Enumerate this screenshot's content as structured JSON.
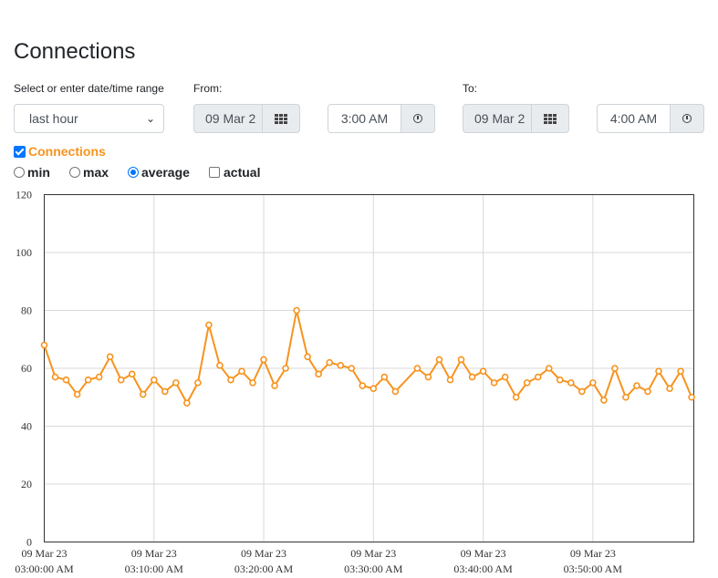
{
  "page": {
    "title": "Connections"
  },
  "range": {
    "label": "Select or enter date/time range",
    "value": "last hour"
  },
  "from": {
    "label": "From:",
    "date": "09 Mar 2",
    "time": "3:00 AM"
  },
  "to": {
    "label": "To:",
    "date": "09 Mar 2",
    "time": "4:00 AM"
  },
  "series_toggle": {
    "label": "Connections",
    "checked": true
  },
  "modes": {
    "min": "min",
    "max": "max",
    "average": "average",
    "actual": "actual",
    "selected": "average"
  },
  "icons": {
    "calendar": "calendar-grid-icon",
    "clock": "clock-icon"
  },
  "colors": {
    "series": "#f7931e",
    "checkbox": "#0075ff",
    "grid": "#d9d9d9"
  },
  "chart_data": {
    "type": "line",
    "ylim": [
      0,
      120
    ],
    "yticks": [
      "0",
      "20",
      "40",
      "60",
      "80",
      "100",
      "120"
    ],
    "x_tick_labels": [
      [
        "09 Mar 23",
        "03:00:00 AM"
      ],
      [
        "09 Mar 23",
        "03:10:00 AM"
      ],
      [
        "09 Mar 23",
        "03:20:00 AM"
      ],
      [
        "09 Mar 23",
        "03:30:00 AM"
      ],
      [
        "09 Mar 23",
        "03:40:00 AM"
      ],
      [
        "09 Mar 23",
        "03:50:00 AM"
      ]
    ],
    "x_unit": "minutes after 03:00:00 AM",
    "x_range": [
      0,
      59.2
    ],
    "series": [
      {
        "name": "Connections",
        "x": [
          0,
          1,
          2,
          3,
          4,
          5,
          6,
          7,
          8,
          9,
          10,
          11,
          12,
          13,
          14,
          15,
          16,
          17,
          18,
          19,
          20,
          21,
          22,
          23,
          24,
          25,
          26,
          27,
          28,
          29,
          30,
          31,
          32,
          34,
          35,
          36,
          37,
          38,
          39,
          40,
          41,
          42,
          43,
          44,
          45,
          46,
          47,
          48,
          49,
          50,
          51,
          52,
          53,
          54,
          55,
          56,
          57,
          58,
          59
        ],
        "y": [
          68,
          57,
          56,
          51,
          56,
          57,
          64,
          56,
          58,
          51,
          56,
          52,
          55,
          48,
          55,
          75,
          61,
          56,
          59,
          55,
          63,
          54,
          60,
          80,
          64,
          58,
          62,
          61,
          60,
          54,
          53,
          57,
          52,
          60,
          57,
          63,
          56,
          63,
          57,
          59,
          55,
          57,
          50,
          55,
          57,
          60,
          56,
          55,
          52,
          55,
          49,
          60,
          50,
          54,
          52,
          59,
          53,
          59,
          50
        ]
      }
    ]
  }
}
